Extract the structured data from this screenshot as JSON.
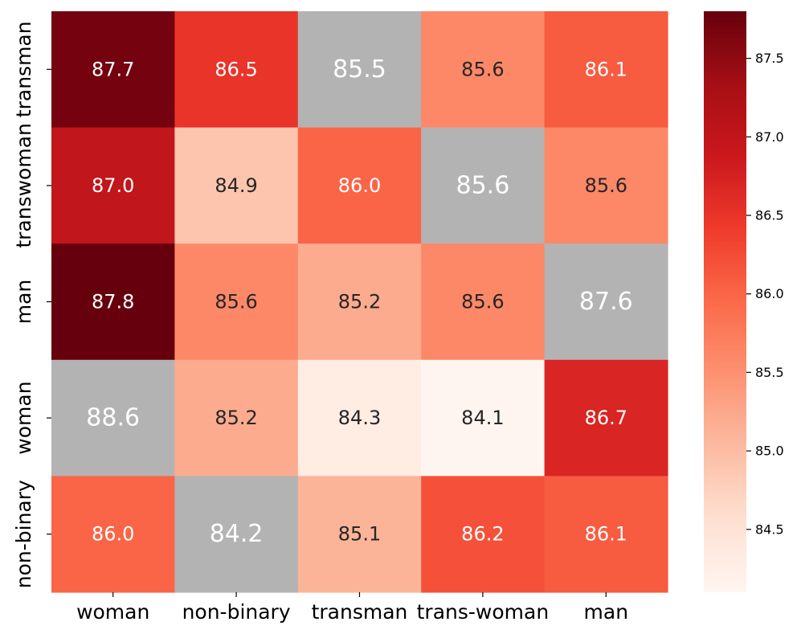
{
  "chart_data": {
    "type": "heatmap",
    "title": "",
    "xlabel": "",
    "ylabel": "",
    "x_categories": [
      "woman",
      "non-binary",
      "transman",
      "trans-woman",
      "man"
    ],
    "y_categories": [
      "transman",
      "transwoman",
      "man",
      "woman",
      "non-binary"
    ],
    "values": [
      [
        "87.7",
        "86.5",
        "85.5",
        "85.6",
        "86.1"
      ],
      [
        "87.0",
        "84.9",
        "86.0",
        "85.6",
        "85.6"
      ],
      [
        "87.8",
        "85.6",
        "85.2",
        "85.6",
        "87.6"
      ],
      [
        "88.6",
        "85.2",
        "84.3",
        "84.1",
        "86.7"
      ],
      [
        "86.0",
        "84.2",
        "85.1",
        "86.2",
        "86.1"
      ]
    ],
    "highlighted_cells": [
      [
        0,
        2
      ],
      [
        1,
        3
      ],
      [
        2,
        4
      ],
      [
        3,
        0
      ],
      [
        4,
        1
      ]
    ],
    "highlight_color": "#b3b3b3",
    "colormap": "Reds",
    "color_range": [
      84.1,
      87.8
    ],
    "colorbar_ticks": [
      "84.5",
      "85.0",
      "85.5",
      "86.0",
      "86.5",
      "87.0",
      "87.5"
    ]
  }
}
